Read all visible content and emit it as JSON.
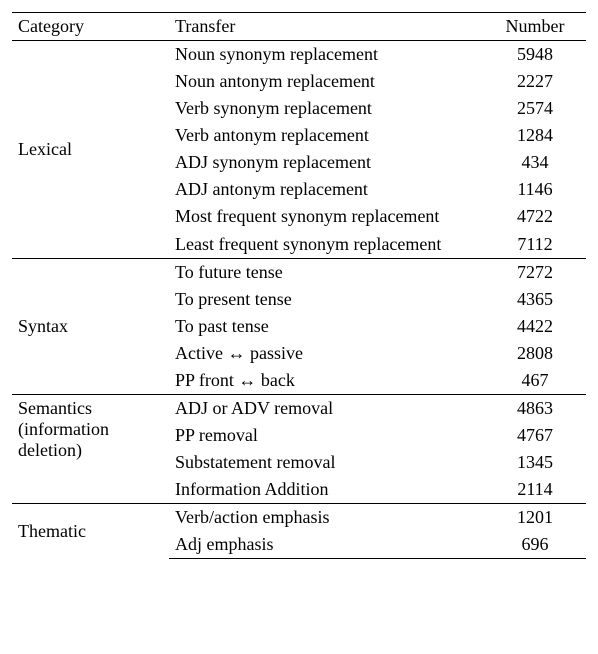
{
  "header": {
    "category": "Category",
    "transfer": "Transfer",
    "number": "Number"
  },
  "groups": [
    {
      "category": "Lexical",
      "rows": [
        {
          "transfer": "Noun synonym replacement",
          "number": "5948"
        },
        {
          "transfer": "Noun antonym replacement",
          "number": "2227"
        },
        {
          "transfer": "Verb synonym replacement",
          "number": "2574"
        },
        {
          "transfer": "Verb antonym replacement",
          "number": "1284"
        },
        {
          "transfer": "ADJ synonym replacement",
          "number": "434"
        },
        {
          "transfer": "ADJ antonym replacement",
          "number": "1146"
        },
        {
          "transfer": "Most frequent synonym replacement",
          "number": "4722"
        },
        {
          "transfer": "Least frequent synonym replacement",
          "number": "7112"
        }
      ]
    },
    {
      "category": "Syntax",
      "rows": [
        {
          "transfer": "To future tense",
          "number": "7272"
        },
        {
          "transfer": "To present tense",
          "number": "4365"
        },
        {
          "transfer": "To past tense",
          "number": "4422"
        },
        {
          "transfer": "Active ↔ passive",
          "number": "2808"
        },
        {
          "transfer": "PP front ↔ back",
          "number": "467"
        }
      ]
    },
    {
      "category": "Semantics (information deletion)",
      "rows": [
        {
          "transfer": "ADJ or ADV removal",
          "number": "4863"
        },
        {
          "transfer": "PP removal",
          "number": "4767"
        },
        {
          "transfer": "Substatement removal",
          "number": "1345"
        },
        {
          "transfer": "Information Addition",
          "number": "2114"
        }
      ]
    },
    {
      "category": "Thematic",
      "rows": [
        {
          "transfer": "Verb/action emphasis",
          "number": "1201"
        },
        {
          "transfer": "Adj emphasis",
          "number": "696"
        }
      ]
    }
  ]
}
